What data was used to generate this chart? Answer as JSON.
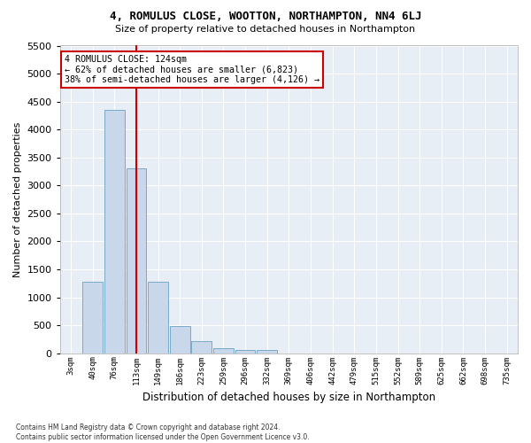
{
  "title": "4, ROMULUS CLOSE, WOOTTON, NORTHAMPTON, NN4 6LJ",
  "subtitle": "Size of property relative to detached houses in Northampton",
  "xlabel": "Distribution of detached houses by size in Northampton",
  "ylabel": "Number of detached properties",
  "bar_color": "#c8d8ea",
  "bar_edge_color": "#7aaac8",
  "background_color": "#e8eef5",
  "grid_color": "#ffffff",
  "annotation_line1": "4 ROMULUS CLOSE: 124sqm",
  "annotation_line2": "← 62% of detached houses are smaller (6,823)",
  "annotation_line3": "38% of semi-detached houses are larger (4,126) →",
  "vline_color": "#cc0000",
  "vline_bin_index": 3,
  "categories": [
    "3sqm",
    "40sqm",
    "76sqm",
    "113sqm",
    "149sqm",
    "186sqm",
    "223sqm",
    "259sqm",
    "296sqm",
    "332sqm",
    "369sqm",
    "406sqm",
    "442sqm",
    "479sqm",
    "515sqm",
    "552sqm",
    "589sqm",
    "625sqm",
    "662sqm",
    "698sqm",
    "735sqm"
  ],
  "bar_heights": [
    0,
    1270,
    4350,
    3300,
    1270,
    490,
    220,
    90,
    55,
    55,
    0,
    0,
    0,
    0,
    0,
    0,
    0,
    0,
    0,
    0,
    0
  ],
  "ylim": [
    0,
    5500
  ],
  "yticks": [
    0,
    500,
    1000,
    1500,
    2000,
    2500,
    3000,
    3500,
    4000,
    4500,
    5000,
    5500
  ],
  "footnote": "Contains HM Land Registry data © Crown copyright and database right 2024.\nContains public sector information licensed under the Open Government Licence v3.0.",
  "figsize": [
    6.0,
    5.0
  ],
  "dpi": 100
}
